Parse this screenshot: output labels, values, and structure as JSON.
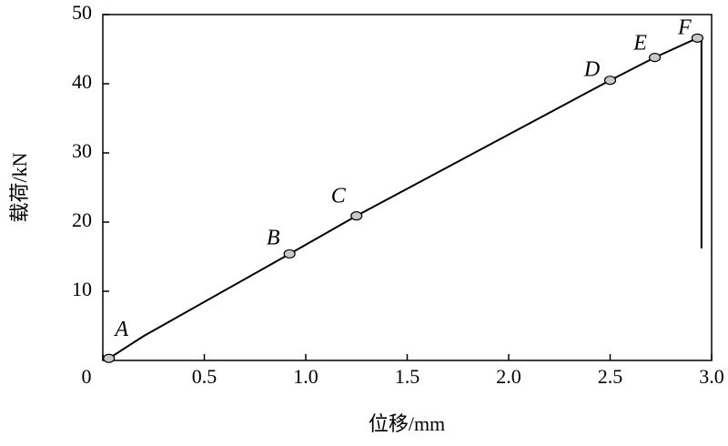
{
  "chart_data": {
    "type": "line",
    "xlabel": "位移/mm",
    "ylabel": "载荷/kN",
    "xlim": [
      0,
      3.0
    ],
    "ylim": [
      0,
      50
    ],
    "xticks": [
      0,
      0.5,
      {
        "value": 1.0,
        "label": "1.0"
      },
      1.5,
      {
        "value": 2.0,
        "label": "2.0"
      },
      2.5,
      {
        "value": 3.0,
        "label": "3.0"
      }
    ],
    "yticks": [
      10,
      20,
      30,
      40,
      50
    ],
    "color": "#000000",
    "x": [
      0.03,
      0.2,
      0.92,
      1.25,
      2.5,
      2.72,
      2.93,
      2.95,
      2.95
    ],
    "values": [
      0.3,
      3.5,
      15.4,
      20.9,
      40.5,
      43.8,
      46.6,
      46.6,
      16.2
    ],
    "markers": {
      "color": "#c8c8c8",
      "labels": [
        "A",
        "B",
        "C",
        "D",
        "E",
        "F"
      ],
      "x": [
        0.03,
        0.92,
        1.25,
        2.5,
        2.72,
        2.93
      ],
      "values": [
        0.3,
        15.4,
        20.9,
        40.5,
        43.8,
        46.6
      ]
    }
  }
}
